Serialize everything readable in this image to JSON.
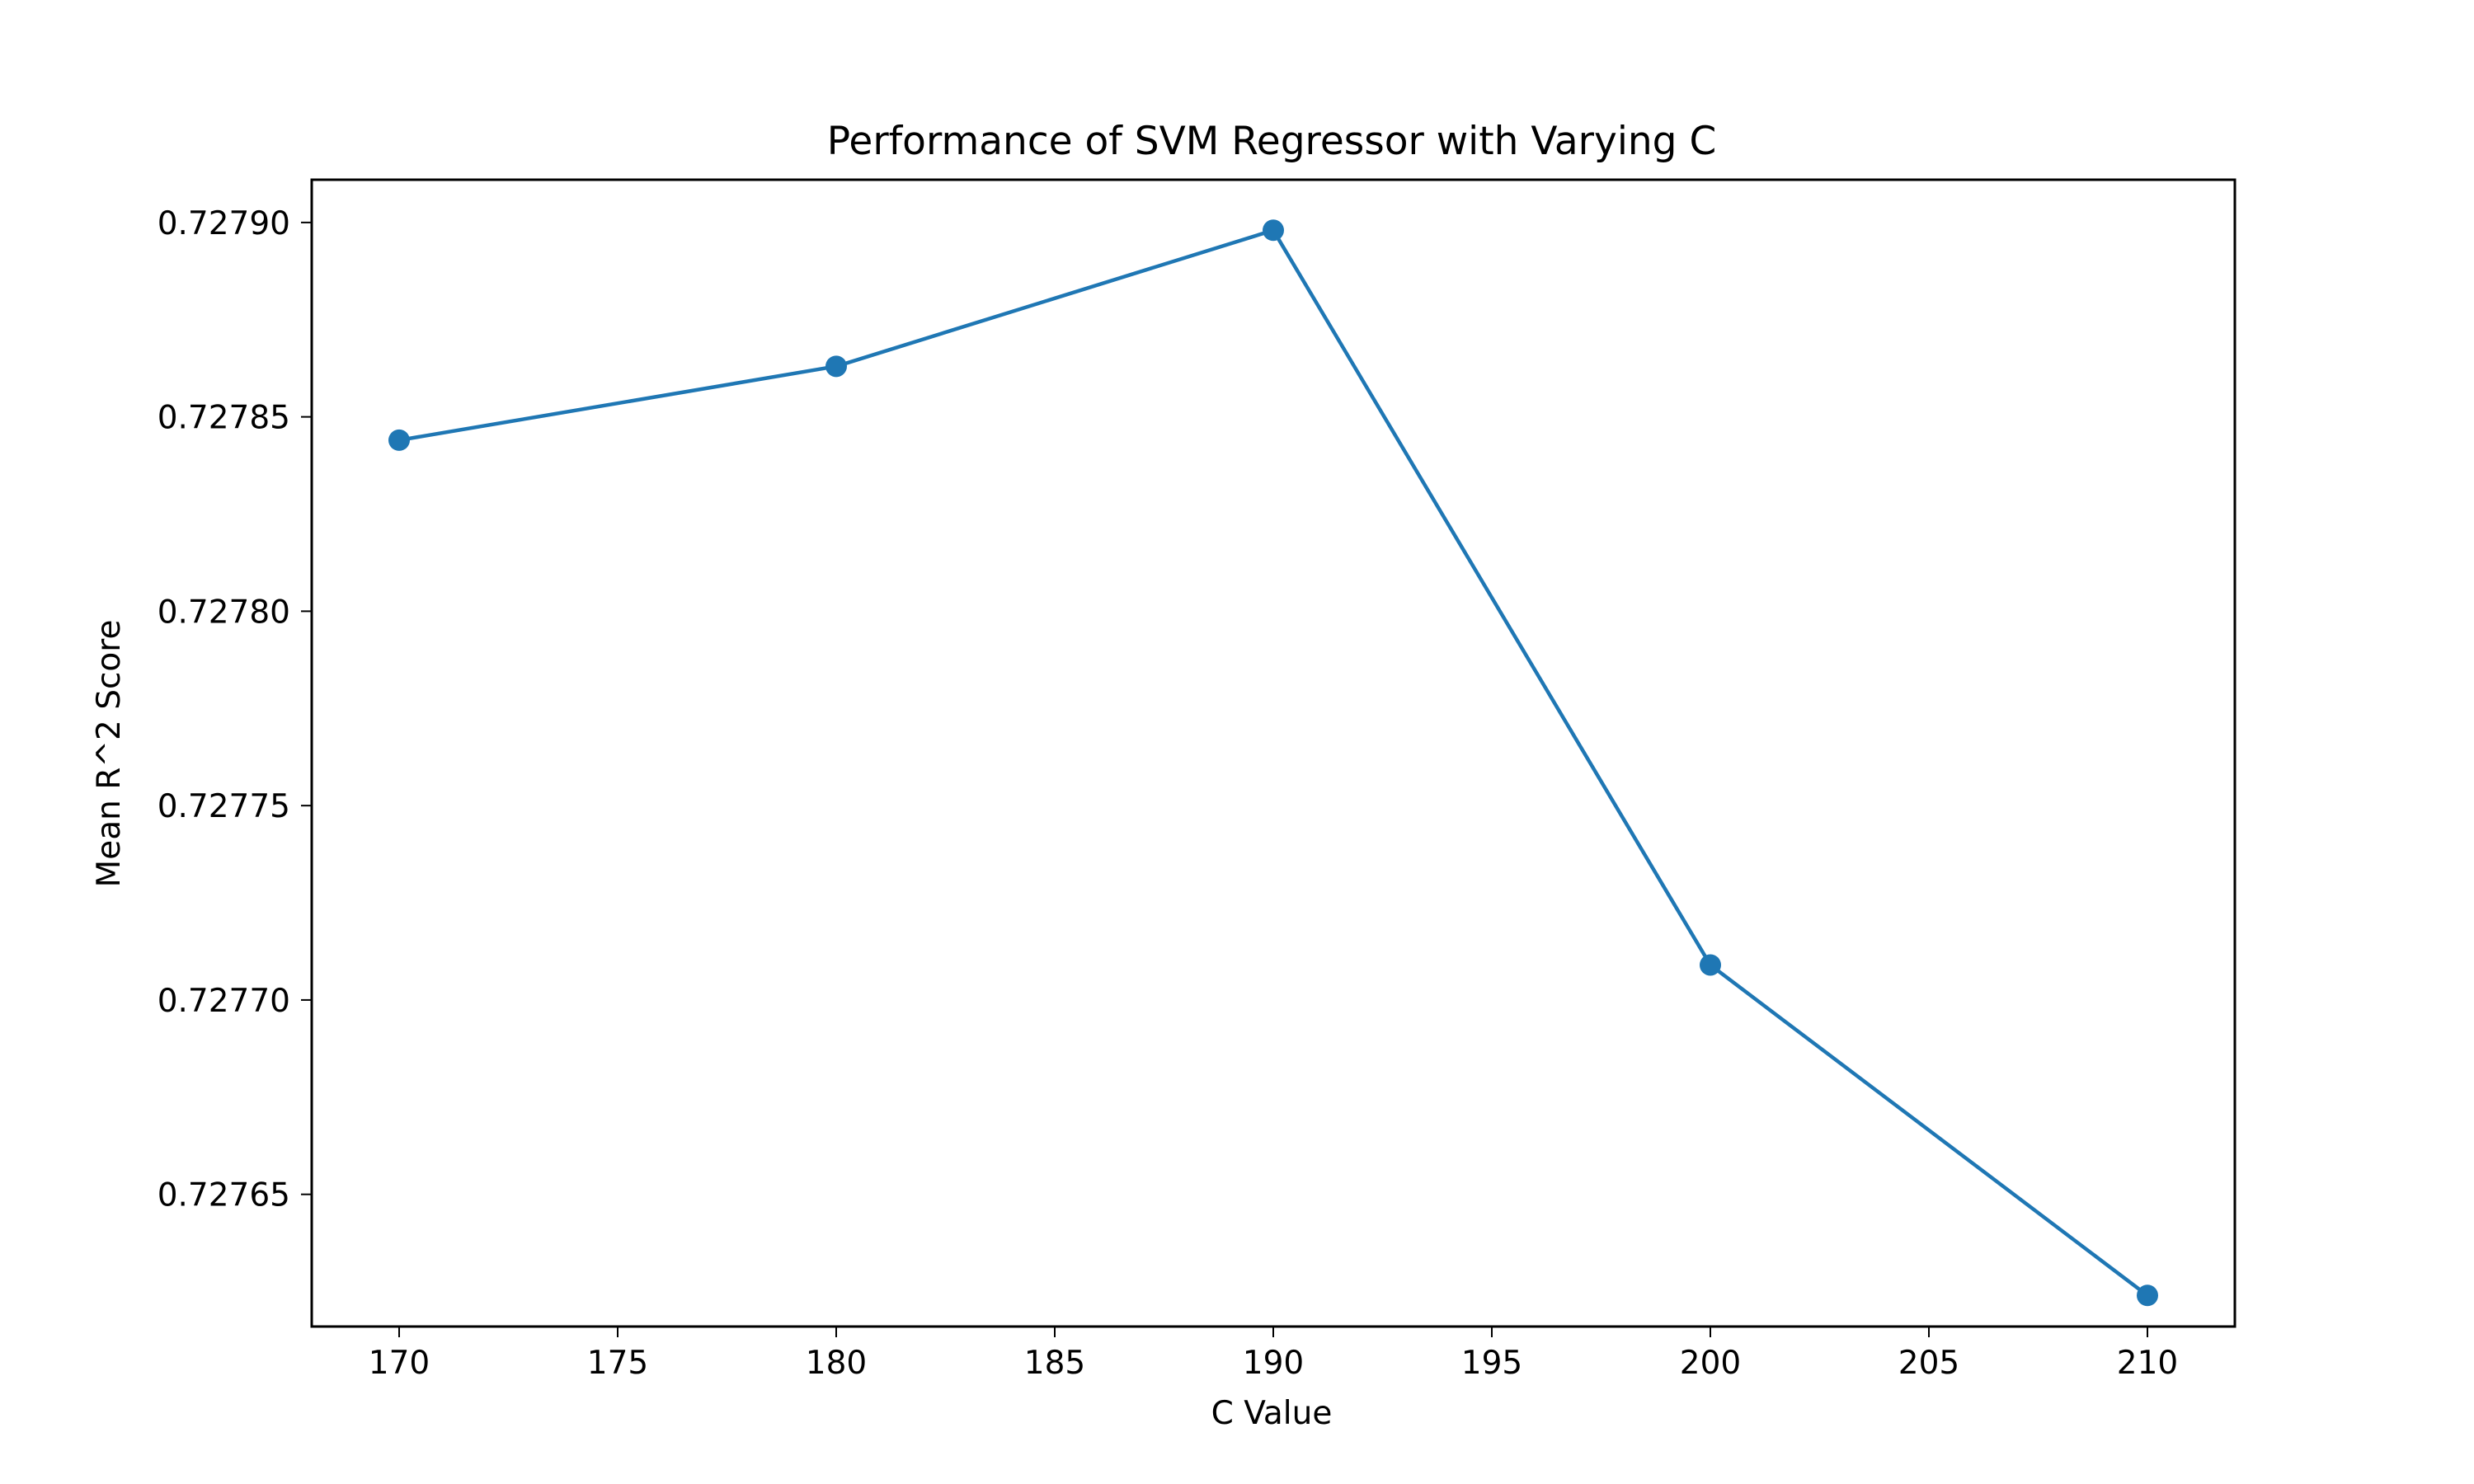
{
  "chart_data": {
    "type": "line",
    "title": "Performance of SVM Regressor with Varying C",
    "xlabel": "C Value",
    "ylabel": "Mean R^2 Score",
    "x": [
      170,
      180,
      190,
      200,
      210
    ],
    "series": [
      {
        "values": [
          0.727844,
          0.727863,
          0.727898,
          0.727709,
          0.727624
        ],
        "color": "#1f77b4",
        "marker": "circle"
      }
    ],
    "xlim": [
      168,
      212
    ],
    "ylim": [
      0.727616,
      0.727911
    ],
    "xticks": [
      170,
      175,
      180,
      185,
      190,
      195,
      200,
      205,
      210
    ],
    "xtick_labels": [
      "170",
      "175",
      "180",
      "185",
      "190",
      "195",
      "200",
      "205",
      "210"
    ],
    "yticks": [
      0.72765,
      0.7277,
      0.72775,
      0.7278,
      0.72785,
      0.7279
    ],
    "ytick_labels": [
      "0.72765",
      "0.72770",
      "0.72775",
      "0.72780",
      "0.72785",
      "0.72790"
    ],
    "grid": false,
    "legend": false
  }
}
